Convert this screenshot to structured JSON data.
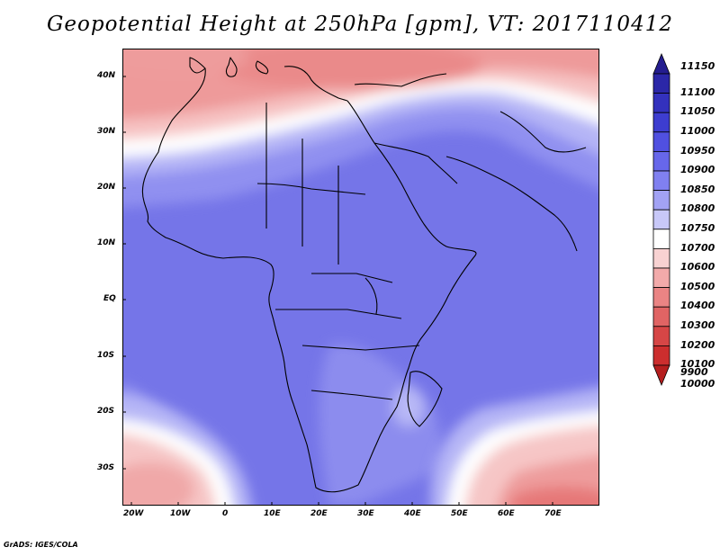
{
  "title": "Geopotential Height at 250hPa [gpm], VT: 2017110412",
  "credit": "GrADS: IGES/COLA",
  "map": {
    "lat_labels": [
      "40N",
      "30N",
      "20N",
      "10N",
      "EQ",
      "10S",
      "20S",
      "30S"
    ],
    "lon_labels": [
      "20W",
      "10W",
      "0",
      "10E",
      "20E",
      "30E",
      "40E",
      "50E",
      "60E",
      "70E"
    ]
  },
  "colorbar": {
    "levels": [
      "11150",
      "11100",
      "11050",
      "11000",
      "10950",
      "10900",
      "10850",
      "10800",
      "10750",
      "10700",
      "10600",
      "10500",
      "10400",
      "10300",
      "10200",
      "10100",
      "10000",
      "9900"
    ],
    "colors": [
      "#241d8f",
      "#2b27a8",
      "#3331bd",
      "#3d3dd0",
      "#5050e0",
      "#6767ea",
      "#8080f0",
      "#a2a2f4",
      "#c8c8f8",
      "#ffffff",
      "#f8d2d2",
      "#f2aaaa",
      "#ea8484",
      "#e06464",
      "#d64646",
      "#cc2e2e",
      "#b51e1e"
    ]
  }
}
